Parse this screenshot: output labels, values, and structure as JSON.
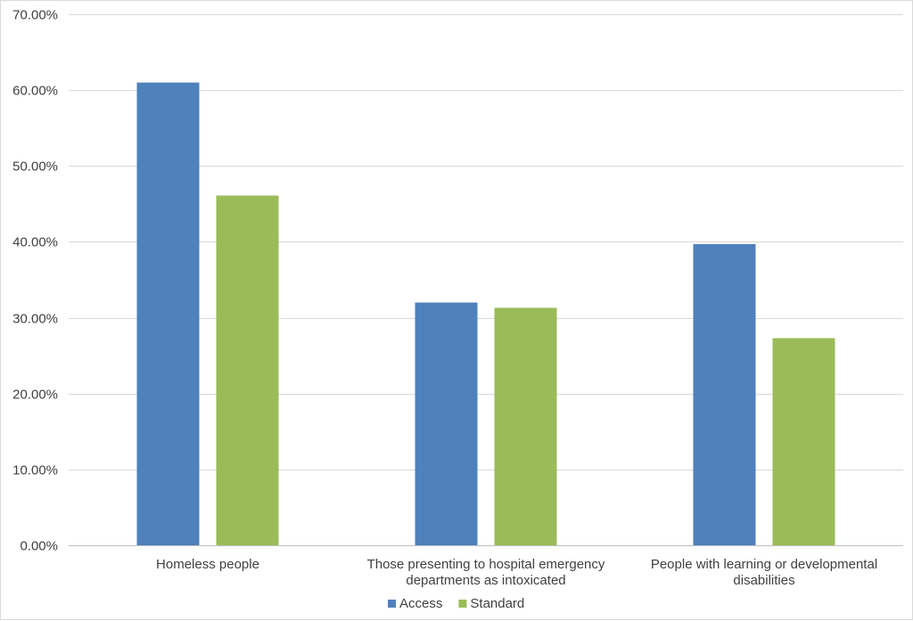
{
  "chart_data": {
    "type": "bar",
    "title": "",
    "xlabel": "",
    "ylabel": "",
    "categories": [
      [
        "Homeless people"
      ],
      [
        "Those presenting to hospital emergency",
        "departments as intoxicated"
      ],
      [
        "People with learning or developmental",
        "disabilities"
      ]
    ],
    "series": [
      {
        "name": "Access",
        "color": "#4f81bd",
        "values": [
          61.0,
          32.0,
          39.7
        ]
      },
      {
        "name": "Standard",
        "color": "#9bbb59",
        "values": [
          46.1,
          31.3,
          27.3
        ]
      }
    ],
    "ylim": [
      0,
      70
    ],
    "yticks": [
      0,
      10,
      20,
      30,
      40,
      50,
      60,
      70
    ],
    "ytick_format": "percent-2dp",
    "grid": true,
    "legend_position": "bottom",
    "gridline_color": "#d9d9d9",
    "axis_color": "#bfbfbf"
  }
}
